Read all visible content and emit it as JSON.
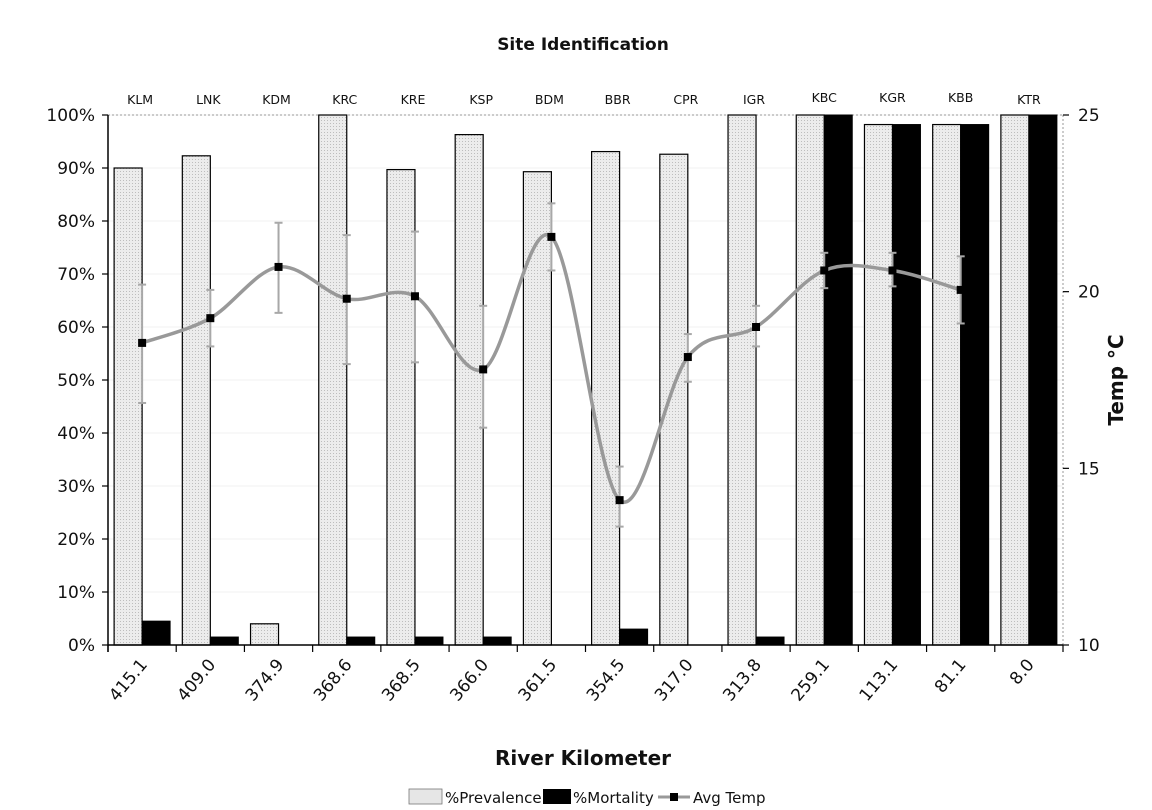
{
  "chart_data": {
    "type": "bar",
    "title": "Site Identification",
    "xlabel": "River Kilometer",
    "y2label": "Temp °C",
    "ylim": [
      0,
      100
    ],
    "y2lim": [
      10,
      25
    ],
    "y_ticks": [
      "0%",
      "10%",
      "20%",
      "30%",
      "40%",
      "50%",
      "60%",
      "70%",
      "80%",
      "90%",
      "100%"
    ],
    "y2_ticks": [
      "10",
      "15",
      "20",
      "25"
    ],
    "categories": [
      "415.1",
      "409.0",
      "374.9",
      "368.6",
      "368.5",
      "366.0",
      "361.5",
      "354.5",
      "317.0",
      "313.8",
      "259.1",
      "113.1",
      "81.1",
      "8.0"
    ],
    "sites": [
      "KLM",
      "LNK",
      "KDM",
      "KRC",
      "KRE",
      "KSP",
      "BDM",
      "BBR",
      "CPR",
      "IGR",
      "KBC",
      "KGR",
      "KBB",
      "KTR"
    ],
    "series": [
      {
        "name": "%Prevalence",
        "axis": "left",
        "kind": "bar",
        "color": "#e6e6e6",
        "values": [
          90,
          92.3,
          4,
          100,
          89.7,
          96.3,
          89.3,
          93.1,
          92.6,
          100,
          100,
          98.2,
          98.2,
          100
        ]
      },
      {
        "name": "%Mortality",
        "axis": "left",
        "kind": "bar",
        "color": "#000000",
        "values": [
          4.5,
          1.5,
          0,
          1.5,
          1.5,
          1.5,
          0,
          3,
          0,
          1.5,
          100,
          98.2,
          98.2,
          100
        ]
      },
      {
        "name": "Avg Temp",
        "axis": "right",
        "kind": "line",
        "color": "#999999",
        "values": [
          18.55,
          19.25,
          20.7,
          19.8,
          19.87,
          17.8,
          21.55,
          14.1,
          18.15,
          19.0,
          20.6,
          20.6,
          20.05,
          null
        ],
        "err_low": [
          16.85,
          18.45,
          19.4,
          17.95,
          18.0,
          16.15,
          20.6,
          13.35,
          17.45,
          18.45,
          20.1,
          20.15,
          19.1,
          null
        ],
        "err_high": [
          20.2,
          20.05,
          21.95,
          21.6,
          21.7,
          19.6,
          22.5,
          15.05,
          18.8,
          19.6,
          21.1,
          21.1,
          21.0,
          null
        ]
      }
    ],
    "grid": true,
    "legend": "bottom"
  }
}
